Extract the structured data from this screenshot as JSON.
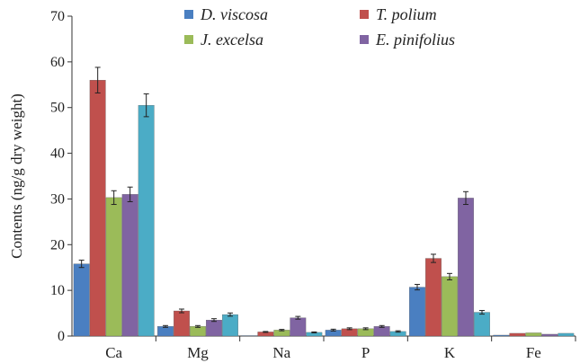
{
  "chart_data": {
    "type": "bar",
    "title": "",
    "xlabel": "",
    "ylabel": "Contents (ng/g dry weight)",
    "ylim": [
      0,
      70
    ],
    "yticks": [
      0,
      10,
      20,
      30,
      40,
      50,
      60,
      70
    ],
    "grid": false,
    "legend_position": "top",
    "categories": [
      "Ca",
      "Mg",
      "Na",
      "P",
      "K",
      "Fe"
    ],
    "series": [
      {
        "name": "D. viscosa",
        "color": "#4a7fc1",
        "values": [
          15.8,
          2.1,
          0.1,
          1.3,
          10.7,
          0.2
        ],
        "errors": [
          0.8,
          0.2,
          0.05,
          0.2,
          0.6,
          0.05
        ]
      },
      {
        "name": "T. polium",
        "color": "#c0504d",
        "values": [
          56.0,
          5.5,
          0.9,
          1.6,
          17.0,
          0.6
        ],
        "errors": [
          2.8,
          0.4,
          0.1,
          0.2,
          0.9,
          0.05
        ]
      },
      {
        "name": "J. excelsa",
        "color": "#9bbb59",
        "values": [
          30.3,
          2.1,
          1.3,
          1.6,
          13.0,
          0.7
        ],
        "errors": [
          1.5,
          0.2,
          0.15,
          0.2,
          0.7,
          0.05
        ]
      },
      {
        "name": "E. pinifolius",
        "color": "#8064a2",
        "values": [
          31.0,
          3.5,
          4.0,
          2.1,
          30.2,
          0.4
        ],
        "errors": [
          1.6,
          0.3,
          0.3,
          0.2,
          1.4,
          0.05
        ]
      },
      {
        "name": "",
        "color": "#4bacc6",
        "values": [
          50.5,
          4.7,
          0.8,
          1.0,
          5.2,
          0.6
        ],
        "errors": [
          2.5,
          0.35,
          0.1,
          0.15,
          0.4,
          0.05
        ]
      }
    ]
  }
}
